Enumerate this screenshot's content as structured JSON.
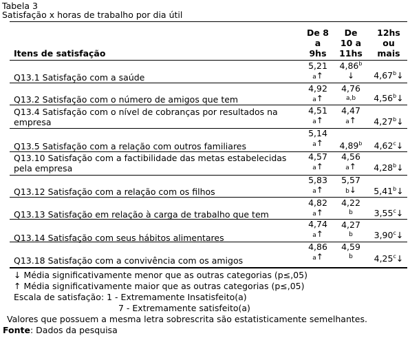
{
  "caption": {
    "table_label": "Tabela 3",
    "title": "Satisfação x horas de trabalho por dia útil"
  },
  "header": {
    "items": "Itens de satisfação",
    "col1": [
      "De 8",
      "a",
      "9hs"
    ],
    "col2": [
      "De",
      "10 a",
      "11hs"
    ],
    "col3": [
      "12hs",
      "ou",
      "mais"
    ]
  },
  "rows": [
    {
      "label": "Q13.1 Satisfação com a saúde",
      "v1": "5,21",
      "s1": "a",
      "a1": "↑",
      "v2": "4,86",
      "s2": "b",
      "a2": "↓",
      "v3": "4,67",
      "s3": "b",
      "a3": "↓"
    },
    {
      "label": "Q13.2 Satisfação com o número de amigos que tem",
      "v1": "4,92",
      "s1": "a",
      "a1": "↑",
      "v2": "4,76",
      "s2": "a,b",
      "a2": "",
      "v3": "4,56",
      "s3": "b",
      "a3": "↓"
    },
    {
      "label": "Q13.4 Satisfação com o nível de cobranças por resultados na empresa",
      "v1": "4,51",
      "s1": "a",
      "a1": "↑",
      "v2": "4,47",
      "s2": "a",
      "a2": "↑",
      "v3": "4,27",
      "s3": "b",
      "a3": "↓"
    },
    {
      "label": "Q13.5 Satisfação com a relação com outros familiares",
      "v1": "5,14",
      "s1": "a",
      "a1": "↑",
      "v2": "4,89",
      "s2": "b",
      "a2": "",
      "v3": "4,62",
      "s3": "c",
      "a3": "↓"
    },
    {
      "label": "Q13.10 Satisfação com a factibilidade das metas estabelecidas pela empresa",
      "v1": "4,57",
      "s1": "a",
      "a1": "↑",
      "v2": "4,56",
      "s2": "a",
      "a2": "↑",
      "v3": "4,28",
      "s3": "b",
      "a3": "↓"
    },
    {
      "label": "Q13.12 Satisfação com a relação com os filhos",
      "v1": "5,83",
      "s1": "a",
      "a1": "↑",
      "v2": "5,57",
      "s2": "b",
      "a2": "↓",
      "v3": "5,41",
      "s3": "b",
      "a3": "↓"
    },
    {
      "label": "Q13.13 Satisfação em relação à carga de trabalho que tem",
      "v1": "4,82",
      "s1": "a",
      "a1": "↑",
      "v2": "4,22",
      "s2": "b",
      "a2": "",
      "v3": "3,55",
      "s3": "c",
      "a3": "↓"
    },
    {
      "label": "Q13.14 Satisfação com seus hábitos alimentares",
      "v1": "4,74",
      "s1": "a",
      "a1": "↑",
      "v2": "4,27",
      "s2": "b",
      "a2": "",
      "v3": "3,90",
      "s3": "c",
      "a3": "↓"
    },
    {
      "label": "Q13.18 Satisfação com a convivência com os amigos",
      "v1": "4,86",
      "s1": "a",
      "a1": "↑",
      "v2": "4,59",
      "s2": "b",
      "a2": "",
      "v3": "4,25",
      "s3": "c",
      "a3": "↓"
    }
  ],
  "notes": {
    "down_arrow": "↓",
    "down_text": "Média significativamente menor que as outras categorias (p≤,05)",
    "up_arrow": "↑",
    "up_text": "Média significativamente maior que as outras categorias (p≤,05)",
    "scale_1": "Escala de satisfação: 1 - Extremamente Insatisfeito(a)",
    "scale_7": "7 - Extremamente satisfeito(a)",
    "superscript_note": "Valores que possuem a mesma letra sobrescrita são estatisticamente semelhantes.",
    "source_label": "Fonte",
    "source_text": ": Dados da pesquisa"
  }
}
